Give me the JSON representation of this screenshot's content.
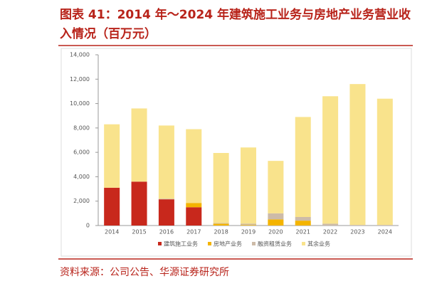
{
  "chart_data": {
    "type": "stacked-bar",
    "title": "图表 41：2014 年～2024 年建筑施工业务与房地产业务营业收入情况（百万元）",
    "source": "资料来源：公司公告、华源证券研究所",
    "categories": [
      "2014",
      "2015",
      "2016",
      "2017",
      "2018",
      "2019",
      "2020",
      "2021",
      "2022",
      "2023",
      "2024"
    ],
    "series": [
      {
        "name": "建筑施工业务",
        "color": "#c8281c",
        "values": [
          3100,
          3600,
          2150,
          1500,
          0,
          0,
          0,
          0,
          0,
          0,
          0
        ]
      },
      {
        "name": "房地产业务",
        "color": "#f4b400",
        "values": [
          0,
          0,
          0,
          350,
          150,
          50,
          500,
          400,
          0,
          0,
          0
        ]
      },
      {
        "name": "融资租赁业务",
        "color": "#cdbba8",
        "values": [
          0,
          0,
          50,
          0,
          50,
          100,
          500,
          300,
          150,
          50,
          50
        ]
      },
      {
        "name": "其余业务",
        "color": "#f9e38c",
        "values": [
          5200,
          6000,
          6000,
          6050,
          5750,
          6250,
          4300,
          8200,
          10450,
          11550,
          10350
        ]
      }
    ],
    "ylim": [
      0,
      14000
    ],
    "yticks": [
      0,
      {
        "value": 2000,
        "label": "2,000"
      },
      {
        "value": 4000,
        "label": "4,000"
      },
      {
        "value": 6000,
        "label": "6,000"
      },
      {
        "value": 8000,
        "label": "8,000"
      },
      {
        "value": 10000,
        "label": "10,000"
      },
      {
        "value": 12000,
        "label": "12,000"
      },
      {
        "value": 14000,
        "label": "14,000"
      }
    ],
    "legend": "bottom"
  }
}
